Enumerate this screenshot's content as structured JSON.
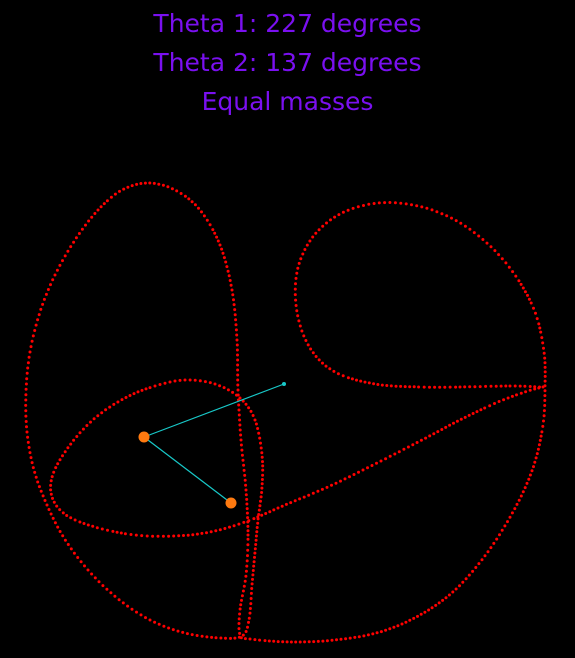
{
  "labels": {
    "theta1": "Theta 1: 227 degrees",
    "theta2": "Theta 2: 137 degrees",
    "masses": "Equal masses"
  },
  "colors": {
    "background": "#000000",
    "text": "#7a10f0",
    "trail": "#ff0000",
    "rod": "#18c8c8",
    "bob": "#ff7a10"
  },
  "pendulum": {
    "theta1_degrees": 227,
    "theta2_degrees": 137,
    "mass_ratio": 1
  }
}
